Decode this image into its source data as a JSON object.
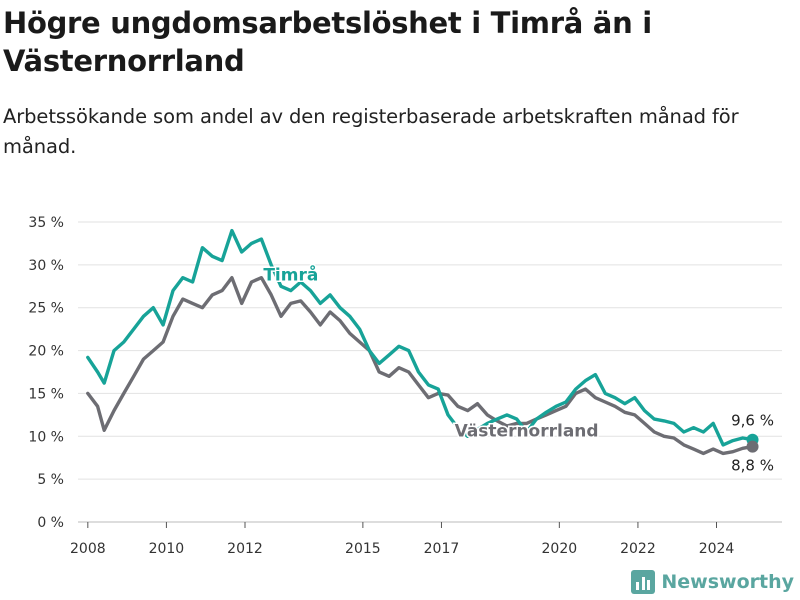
{
  "header": {
    "title": "Högre ungdomsarbetslöshet i Timrå än i Västernorrland",
    "subtitle": "Arbetssökande som andel av den registerbaserade arbetskraften månad för månad."
  },
  "brand": {
    "name": "Newsworthy",
    "icon": "bar-chart-icon",
    "color": "#5aa6a0"
  },
  "chart_data": {
    "type": "line",
    "title": "Högre ungdomsarbetslöshet i Timrå än i Västernorrland",
    "subtitle": "Arbetssökande som andel av den registerbaserade arbetskraften månad för månad.",
    "x_ticks": [
      "2008",
      "2010",
      "2012",
      "2015",
      "2017",
      "2020",
      "2022",
      "2024"
    ],
    "y_ticks": [
      "0 %",
      "5 %",
      "10 %",
      "15 %",
      "20 %",
      "25 %",
      "30 %",
      "35 %"
    ],
    "ylim": [
      0,
      35
    ],
    "xlim": [
      "2007-10",
      "2025-09"
    ],
    "grid": true,
    "series": [
      {
        "name": "Timrå",
        "color": "#17a398",
        "end_label": "9,6 %",
        "points": [
          [
            "2008-01",
            19.2
          ],
          [
            "2008-04",
            17.5
          ],
          [
            "2008-06",
            16.2
          ],
          [
            "2008-09",
            20.0
          ],
          [
            "2008-12",
            21.0
          ],
          [
            "2009-03",
            22.5
          ],
          [
            "2009-06",
            24.0
          ],
          [
            "2009-09",
            25.0
          ],
          [
            "2009-12",
            23.0
          ],
          [
            "2010-03",
            27.0
          ],
          [
            "2010-06",
            28.5
          ],
          [
            "2010-09",
            28.0
          ],
          [
            "2010-12",
            32.0
          ],
          [
            "2011-03",
            31.0
          ],
          [
            "2011-06",
            30.5
          ],
          [
            "2011-09",
            34.0
          ],
          [
            "2011-12",
            31.5
          ],
          [
            "2012-03",
            32.5
          ],
          [
            "2012-06",
            33.0
          ],
          [
            "2012-09",
            30.0
          ],
          [
            "2012-12",
            27.5
          ],
          [
            "2013-03",
            27.0
          ],
          [
            "2013-06",
            28.0
          ],
          [
            "2013-09",
            27.0
          ],
          [
            "2013-12",
            25.5
          ],
          [
            "2014-03",
            26.5
          ],
          [
            "2014-06",
            25.0
          ],
          [
            "2014-09",
            24.0
          ],
          [
            "2014-12",
            22.5
          ],
          [
            "2015-03",
            20.0
          ],
          [
            "2015-06",
            18.5
          ],
          [
            "2015-09",
            19.5
          ],
          [
            "2015-12",
            20.5
          ],
          [
            "2016-03",
            20.0
          ],
          [
            "2016-06",
            17.5
          ],
          [
            "2016-09",
            16.0
          ],
          [
            "2016-12",
            15.5
          ],
          [
            "2017-03",
            12.5
          ],
          [
            "2017-06",
            11.0
          ],
          [
            "2017-09",
            10.0
          ],
          [
            "2017-12",
            10.8
          ],
          [
            "2018-03",
            11.5
          ],
          [
            "2018-06",
            12.0
          ],
          [
            "2018-09",
            12.5
          ],
          [
            "2018-12",
            12.0
          ],
          [
            "2019-03",
            10.5
          ],
          [
            "2019-06",
            12.0
          ],
          [
            "2019-09",
            12.8
          ],
          [
            "2019-12",
            13.5
          ],
          [
            "2020-03",
            14.0
          ],
          [
            "2020-06",
            15.5
          ],
          [
            "2020-09",
            16.5
          ],
          [
            "2020-12",
            17.2
          ],
          [
            "2021-03",
            15.0
          ],
          [
            "2021-06",
            14.5
          ],
          [
            "2021-09",
            13.8
          ],
          [
            "2021-12",
            14.5
          ],
          [
            "2022-03",
            13.0
          ],
          [
            "2022-06",
            12.0
          ],
          [
            "2022-09",
            11.8
          ],
          [
            "2022-12",
            11.5
          ],
          [
            "2023-03",
            10.5
          ],
          [
            "2023-06",
            11.0
          ],
          [
            "2023-09",
            10.5
          ],
          [
            "2023-12",
            11.5
          ],
          [
            "2024-03",
            9.0
          ],
          [
            "2024-06",
            9.5
          ],
          [
            "2024-09",
            9.8
          ],
          [
            "2024-12",
            9.6
          ]
        ]
      },
      {
        "name": "Västernorrland",
        "color": "#6d6d73",
        "end_label": "8,8 %",
        "points": [
          [
            "2008-01",
            15.0
          ],
          [
            "2008-04",
            13.5
          ],
          [
            "2008-06",
            10.7
          ],
          [
            "2008-09",
            13.0
          ],
          [
            "2008-12",
            15.0
          ],
          [
            "2009-03",
            17.0
          ],
          [
            "2009-06",
            19.0
          ],
          [
            "2009-09",
            20.0
          ],
          [
            "2009-12",
            21.0
          ],
          [
            "2010-03",
            24.0
          ],
          [
            "2010-06",
            26.0
          ],
          [
            "2010-09",
            25.5
          ],
          [
            "2010-12",
            25.0
          ],
          [
            "2011-03",
            26.5
          ],
          [
            "2011-06",
            27.0
          ],
          [
            "2011-09",
            28.5
          ],
          [
            "2011-12",
            25.5
          ],
          [
            "2012-03",
            28.0
          ],
          [
            "2012-06",
            28.5
          ],
          [
            "2012-09",
            26.5
          ],
          [
            "2012-12",
            24.0
          ],
          [
            "2013-03",
            25.5
          ],
          [
            "2013-06",
            25.8
          ],
          [
            "2013-09",
            24.5
          ],
          [
            "2013-12",
            23.0
          ],
          [
            "2014-03",
            24.5
          ],
          [
            "2014-06",
            23.5
          ],
          [
            "2014-09",
            22.0
          ],
          [
            "2014-12",
            21.0
          ],
          [
            "2015-03",
            20.0
          ],
          [
            "2015-06",
            17.5
          ],
          [
            "2015-09",
            17.0
          ],
          [
            "2015-12",
            18.0
          ],
          [
            "2016-03",
            17.5
          ],
          [
            "2016-06",
            16.0
          ],
          [
            "2016-09",
            14.5
          ],
          [
            "2016-12",
            15.0
          ],
          [
            "2017-03",
            14.8
          ],
          [
            "2017-06",
            13.5
          ],
          [
            "2017-09",
            13.0
          ],
          [
            "2017-12",
            13.8
          ],
          [
            "2018-03",
            12.5
          ],
          [
            "2018-06",
            11.8
          ],
          [
            "2018-09",
            11.2
          ],
          [
            "2018-12",
            11.5
          ],
          [
            "2019-03",
            11.5
          ],
          [
            "2019-06",
            12.0
          ],
          [
            "2019-09",
            12.5
          ],
          [
            "2019-12",
            13.0
          ],
          [
            "2020-03",
            13.5
          ],
          [
            "2020-06",
            15.0
          ],
          [
            "2020-09",
            15.5
          ],
          [
            "2020-12",
            14.5
          ],
          [
            "2021-03",
            14.0
          ],
          [
            "2021-06",
            13.5
          ],
          [
            "2021-09",
            12.8
          ],
          [
            "2021-12",
            12.5
          ],
          [
            "2022-03",
            11.5
          ],
          [
            "2022-06",
            10.5
          ],
          [
            "2022-09",
            10.0
          ],
          [
            "2022-12",
            9.8
          ],
          [
            "2023-03",
            9.0
          ],
          [
            "2023-06",
            8.5
          ],
          [
            "2023-09",
            8.0
          ],
          [
            "2023-12",
            8.5
          ],
          [
            "2024-03",
            8.0
          ],
          [
            "2024-06",
            8.2
          ],
          [
            "2024-09",
            8.6
          ],
          [
            "2024-12",
            8.8
          ]
        ]
      }
    ]
  }
}
